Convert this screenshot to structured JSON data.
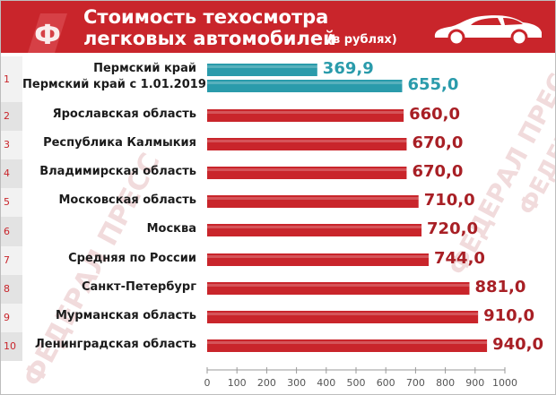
{
  "header": {
    "title_line1": "Стоимость техосмотра",
    "title_line2": "легковых автомобилей",
    "subtitle": "(в рублях)",
    "logo_letter": "Ф",
    "brand_color": "#c9252b",
    "icons": [
      "logo-icon",
      "car-icon"
    ]
  },
  "watermarks": [
    "ФЕДЕРАЛ ПРЕСС",
    "ФЕДЕРАЛ ПРЕСС",
    "ФЕДЕРАЛ ПРЕСС"
  ],
  "chart_data": {
    "type": "bar",
    "orientation": "horizontal",
    "title": "Стоимость техосмотра легковых автомобилей (в рублях)",
    "categories": [
      "Пермский край",
      "Пермский край с 1.01.2019",
      "Ярославская область",
      "Республика Калмыкия",
      "Владимирская область",
      "Московская область",
      "Москва",
      "Средняя по России",
      "Санкт-Петербург",
      "Мурманская область",
      "Ленинградская область"
    ],
    "values": [
      369.9,
      655.0,
      660.0,
      670.0,
      670.0,
      710.0,
      720.0,
      744.0,
      881.0,
      910.0,
      940.0
    ],
    "value_labels": [
      "369,9",
      "655,0",
      "660,0",
      "670,0",
      "670,0",
      "710,0",
      "720,0",
      "744,0",
      "881,0",
      "910,0",
      "940,0"
    ],
    "ranks": [
      "1",
      "1",
      "2",
      "3",
      "4",
      "5",
      "6",
      "7",
      "8",
      "9",
      "10"
    ],
    "bar_colors": [
      "teal",
      "teal",
      "red",
      "red",
      "red",
      "red",
      "red",
      "red",
      "red",
      "red",
      "red"
    ],
    "colors": {
      "teal": "#2a9bab",
      "red": "#c9252b"
    },
    "xlim": [
      0,
      1000
    ],
    "x_ticks": [
      "0",
      "100",
      "200",
      "300",
      "400",
      "500",
      "600",
      "700",
      "800",
      "900",
      "1000"
    ],
    "grid": false,
    "legend": "none"
  }
}
